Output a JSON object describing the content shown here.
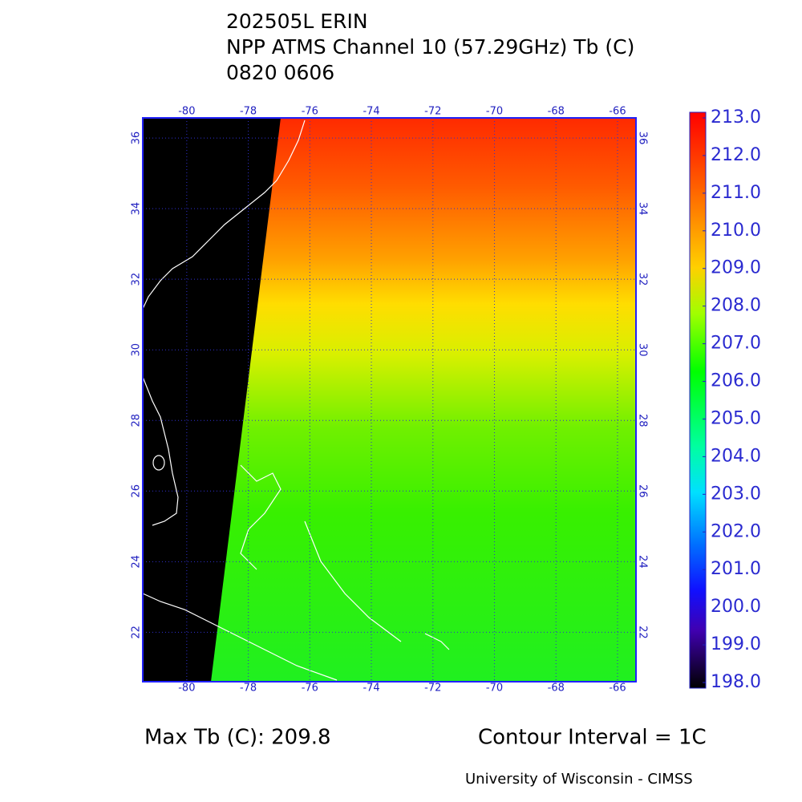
{
  "header": {
    "lines": [
      "202505L ERIN",
      "NPP ATMS Channel 10 (57.29GHz) Tb (C)",
      "0820 0606"
    ]
  },
  "map": {
    "xlim": [
      -81.43,
      -65.4
    ],
    "ylim": [
      20.6,
      36.57
    ],
    "xticks": [
      -80,
      -78,
      -76,
      -74,
      -72,
      -70,
      -68,
      -66
    ],
    "yticks": [
      22,
      24,
      26,
      28,
      30,
      32,
      34,
      36
    ]
  },
  "colorbar": {
    "clim": [
      198,
      213
    ],
    "ticks": [
      {
        "value": 213,
        "label": "213.0"
      },
      {
        "value": 212,
        "label": "212.0"
      },
      {
        "value": 211,
        "label": "211.0"
      },
      {
        "value": 210,
        "label": "210.0"
      },
      {
        "value": 209,
        "label": "209.0"
      },
      {
        "value": 208,
        "label": "208.0"
      },
      {
        "value": 207,
        "label": "207.0"
      },
      {
        "value": 206,
        "label": "206.0"
      },
      {
        "value": 205,
        "label": "205.0"
      },
      {
        "value": 204,
        "label": "204.0"
      },
      {
        "value": 203,
        "label": "203.0"
      },
      {
        "value": 202,
        "label": "202.0"
      },
      {
        "value": 201,
        "label": "201.0"
      },
      {
        "value": 200,
        "label": "200.0"
      },
      {
        "value": 199,
        "label": "199.0"
      },
      {
        "value": 198,
        "label": "198.0"
      }
    ]
  },
  "footer": {
    "max": "Max Tb (C): 209.8",
    "contour": "Contour Interval = 1C",
    "credit": "University of Wisconsin - CIMSS"
  }
}
